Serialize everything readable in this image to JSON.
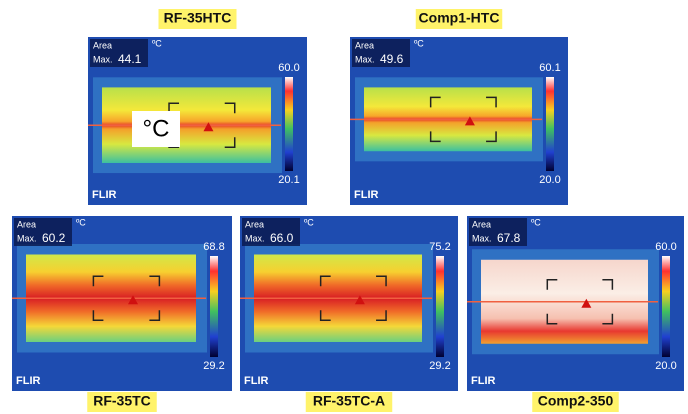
{
  "area_label": "Area",
  "max_label": "Max.",
  "unit": "ºC",
  "brand": "FLIR",
  "overlay_unit": "°C",
  "panels": [
    {
      "label": "RF-35HTC",
      "max": "44.1",
      "scale_max": "60.0",
      "scale_min": "20.1"
    },
    {
      "label": "Comp1-HTC",
      "max": "49.6",
      "scale_max": "60.1",
      "scale_min": "20.0"
    },
    {
      "label": "RF-35TC",
      "max": "60.2",
      "scale_max": "68.8",
      "scale_min": "29.2"
    },
    {
      "label": "RF-35TC-A",
      "max": "66.0",
      "scale_max": "75.2",
      "scale_min": "29.2"
    },
    {
      "label": "Comp2-350",
      "max": "67.8",
      "scale_max": "60.0",
      "scale_min": "20.0"
    }
  ]
}
